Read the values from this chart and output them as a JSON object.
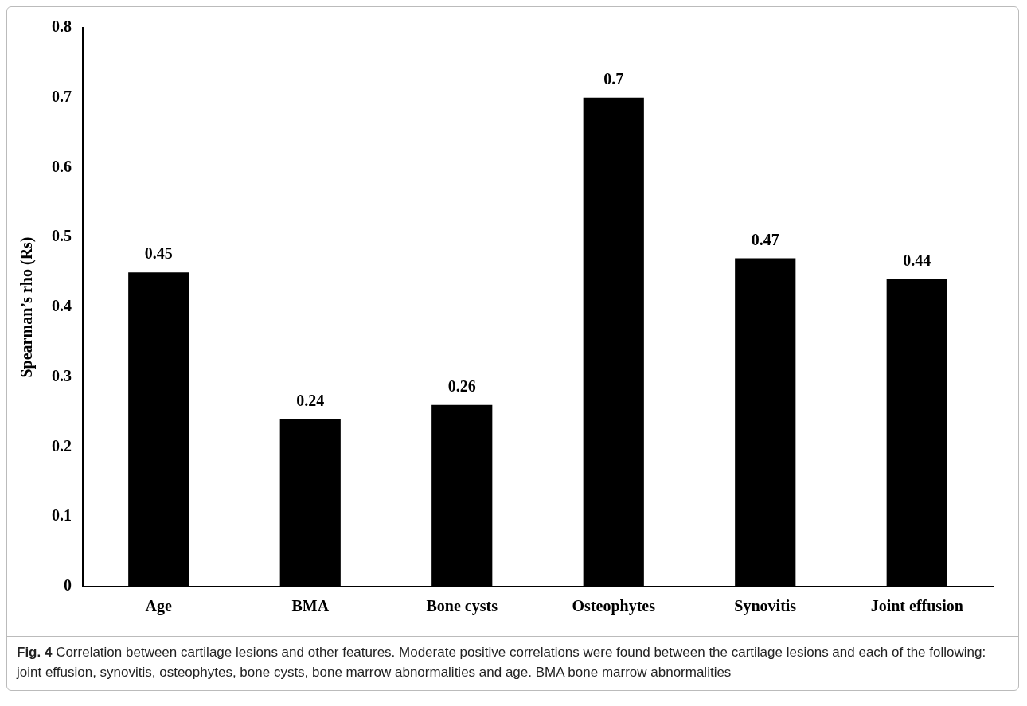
{
  "chart_data": {
    "type": "bar",
    "ylabel": "Spearman’s rho (Rs)",
    "categories": [
      "Age",
      "BMA",
      "Bone cysts",
      "Osteophytes",
      "Synovitis",
      "Joint effusion"
    ],
    "values": [
      0.45,
      0.24,
      0.26,
      0.7,
      0.47,
      0.44
    ],
    "color": "#000000",
    "ylim": [
      0,
      0.8
    ],
    "yticks": [
      {
        "value": 0,
        "label": "0"
      },
      0.1,
      0.2,
      0.3,
      0.4,
      0.5,
      0.6,
      0.7,
      0.8
    ],
    "grid": false,
    "legend": false,
    "data_labels": true,
    "annotations": [
      "Fig. 4",
      "Correlation between cartilage lesions and other features. Moderate positive correlations were found between the cartilage lesions and each of the following: joint effusion, synovitis, osteophytes, bone cysts, bone marrow abnormalities and age. BMA bone marrow abnormalities"
    ]
  }
}
